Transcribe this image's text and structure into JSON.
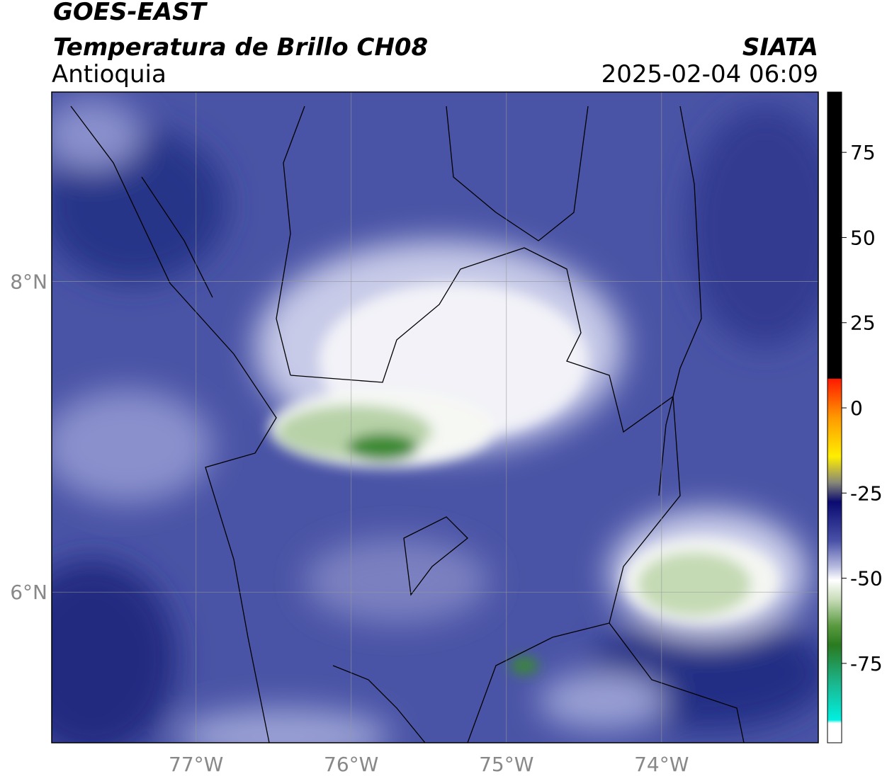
{
  "header": {
    "title": "GOES-EAST",
    "subtitle": "Temperatura de Brillo CH08",
    "region": "Antioquia",
    "source": "SIATA",
    "datetime": "2025-02-04 06:09"
  },
  "map": {
    "xlim": [
      -77.93,
      -72.99
    ],
    "ylim": [
      5.03,
      9.22
    ],
    "xticks": [
      {
        "value": -77,
        "label": "77°W"
      },
      {
        "value": -76,
        "label": "76°W"
      },
      {
        "value": -75,
        "label": "75°W"
      },
      {
        "value": -74,
        "label": "74°W"
      }
    ],
    "yticks": [
      {
        "value": 6,
        "label": "6°N"
      },
      {
        "value": 8,
        "label": "8°N"
      }
    ],
    "grid": true
  },
  "colorbar": {
    "lim": [
      -98.3,
      92.7
    ],
    "ticks": [
      -75,
      -50,
      -25,
      0,
      25,
      50,
      75
    ]
  }
}
